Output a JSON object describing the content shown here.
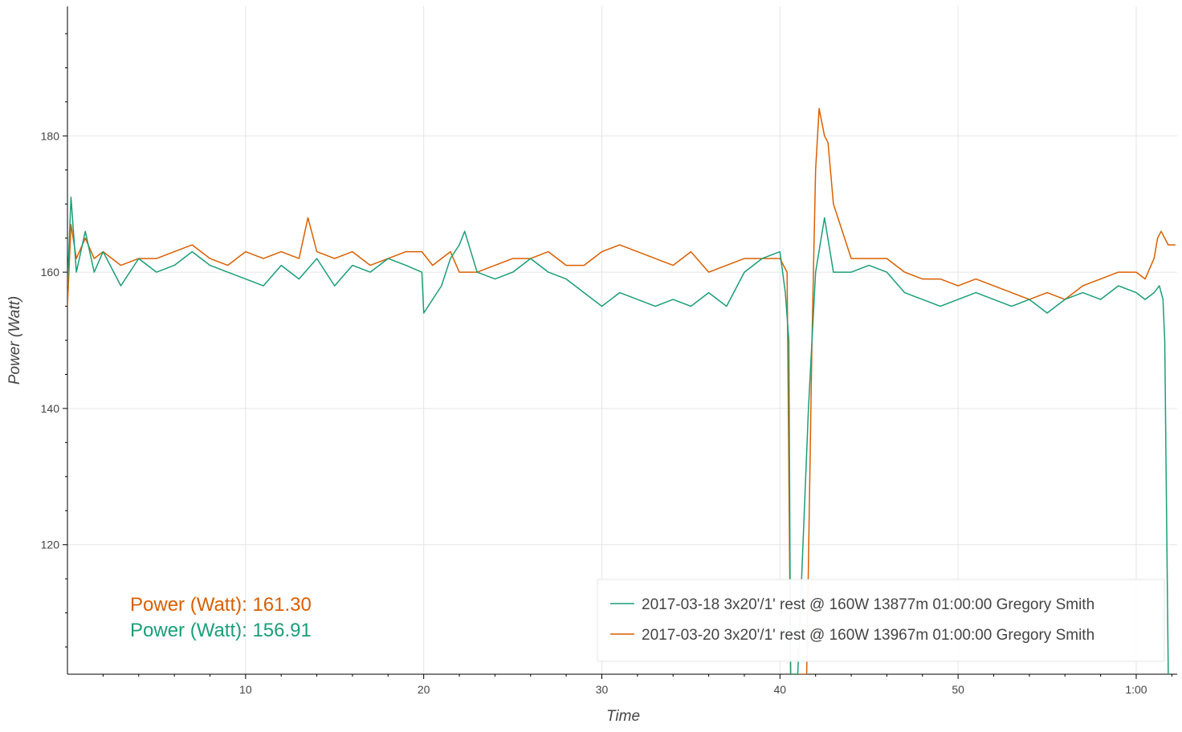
{
  "chart_data": {
    "type": "line",
    "xlabel": "Time",
    "ylabel": "Power (Watt)",
    "xlim_min": [
      0,
      62.3
    ],
    "ylim": [
      101,
      199
    ],
    "x_ticks": [
      {
        "value": 10,
        "label": "10"
      },
      {
        "value": 20,
        "label": "20"
      },
      {
        "value": 30,
        "label": "30"
      },
      {
        "value": 40,
        "label": "40"
      },
      {
        "value": 50,
        "label": "50"
      },
      {
        "value": 60,
        "label": "1:00"
      }
    ],
    "y_ticks": [
      {
        "value": 120,
        "label": "120"
      },
      {
        "value": 140,
        "label": "140"
      },
      {
        "value": 160,
        "label": "160"
      },
      {
        "value": 180,
        "label": "180"
      }
    ],
    "grid": true,
    "legend_position": "bottom-right",
    "annotations": [
      {
        "text": "Power (Watt): 161.30",
        "color": "#d95f02"
      },
      {
        "text": "Power (Watt): 156.91",
        "color": "#1b9e77"
      }
    ],
    "series": [
      {
        "name": "2017-03-18 3x20'/1' rest @ 160W 13877m 01:00:00 Gregory Smith",
        "color": "#1b9e77",
        "x": [
          0.0,
          0.2,
          0.5,
          1.0,
          1.5,
          2.0,
          3.0,
          4.0,
          5.0,
          6.0,
          7.0,
          8.0,
          9.0,
          10.0,
          11.0,
          12.0,
          13.0,
          14.0,
          15.0,
          16.0,
          17.0,
          18.0,
          19.0,
          19.9,
          20.0,
          21.0,
          21.5,
          22.0,
          22.3,
          23.0,
          24.0,
          25.0,
          26.0,
          27.0,
          28.0,
          29.0,
          30.0,
          31.0,
          32.0,
          33.0,
          34.0,
          35.0,
          36.0,
          37.0,
          38.0,
          39.0,
          40.0,
          40.3,
          40.5,
          40.6,
          41.0,
          41.6,
          42.0,
          42.5,
          43.0,
          44.0,
          45.0,
          46.0,
          47.0,
          48.0,
          49.0,
          50.0,
          51.0,
          52.0,
          53.0,
          54.0,
          55.0,
          56.0,
          57.0,
          58.0,
          59.0,
          60.0,
          60.5,
          61.0,
          61.3,
          61.5,
          61.6,
          61.8
        ],
        "y": [
          158,
          171,
          160,
          166,
          160,
          163,
          158,
          162,
          160,
          161,
          163,
          161,
          160,
          159,
          158,
          161,
          159,
          162,
          158,
          161,
          160,
          162,
          161,
          160,
          154,
          158,
          162,
          164,
          166,
          160,
          159,
          160,
          162,
          160,
          159,
          157,
          155,
          157,
          156,
          155,
          156,
          155,
          157,
          155,
          160,
          162,
          163,
          157,
          150,
          101,
          101,
          140,
          160,
          168,
          160,
          160,
          161,
          160,
          157,
          156,
          155,
          156,
          157,
          156,
          155,
          156,
          154,
          156,
          157,
          156,
          158,
          157,
          156,
          157,
          158,
          156,
          150,
          101
        ]
      },
      {
        "name": "2017-03-20 3x20'/1' rest @ 160W 13967m 01:00:00 Gregory Smith",
        "color": "#d95f02",
        "x": [
          0.0,
          0.2,
          0.5,
          1.0,
          1.5,
          2.0,
          3.0,
          4.0,
          5.0,
          6.0,
          7.0,
          8.0,
          9.0,
          10.0,
          11.0,
          12.0,
          13.0,
          13.5,
          14.0,
          15.0,
          16.0,
          17.0,
          18.0,
          19.0,
          19.9,
          20.5,
          21.0,
          21.5,
          22.0,
          23.0,
          24.0,
          25.0,
          26.0,
          27.0,
          28.0,
          29.0,
          30.0,
          31.0,
          32.0,
          33.0,
          34.0,
          35.0,
          36.0,
          37.0,
          38.0,
          39.0,
          40.0,
          40.4,
          40.6,
          41.0,
          41.5,
          41.8,
          42.0,
          42.2,
          42.5,
          42.7,
          43.0,
          44.0,
          45.0,
          46.0,
          47.0,
          48.0,
          49.0,
          50.0,
          51.0,
          52.0,
          53.0,
          54.0,
          55.0,
          56.0,
          57.0,
          58.0,
          59.0,
          60.0,
          60.5,
          61.0,
          61.2,
          61.4,
          61.8,
          62.2
        ],
        "y": [
          155,
          167,
          162,
          165,
          162,
          163,
          161,
          162,
          162,
          163,
          164,
          162,
          161,
          163,
          162,
          163,
          162,
          168,
          163,
          162,
          163,
          161,
          162,
          163,
          163,
          161,
          162,
          163,
          160,
          160,
          161,
          162,
          162,
          163,
          161,
          161,
          163,
          164,
          163,
          162,
          161,
          163,
          160,
          161,
          162,
          162,
          162,
          160,
          101,
          101,
          101,
          150,
          175,
          184,
          180,
          179,
          170,
          162,
          162,
          162,
          160,
          159,
          159,
          158,
          159,
          158,
          157,
          156,
          157,
          156,
          158,
          159,
          160,
          160,
          159,
          162,
          165,
          166,
          164,
          164
        ]
      }
    ]
  }
}
